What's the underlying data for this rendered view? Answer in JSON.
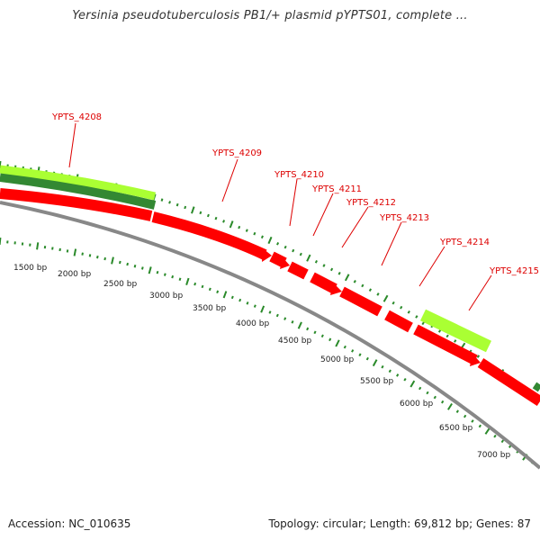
{
  "title": "Yersinia pseudotuberculosis PB1/+ plasmid pYPTS01, complete ...",
  "footer": {
    "accession": "Accession: NC_010635",
    "summary": "Topology: circular; Length: 69,812 bp; Genes: 87"
  },
  "colors": {
    "label_red": "#dd0000",
    "cds_red": "#ff0000",
    "cds_light_green": "#aaff33",
    "cds_dark_green": "#338833",
    "tick_green": "#2a8a2a",
    "backbone_gray": "#888888"
  },
  "genes": [
    {
      "name": "YPTS_4208"
    },
    {
      "name": "YPTS_4209"
    },
    {
      "name": "YPTS_4210"
    },
    {
      "name": "YPTS_4211"
    },
    {
      "name": "YPTS_4212"
    },
    {
      "name": "YPTS_4213"
    },
    {
      "name": "YPTS_4214"
    },
    {
      "name": "YPTS_4215"
    }
  ],
  "bp_labels": [
    "1500 bp",
    "2000 bp",
    "2500 bp",
    "3000 bp",
    "3500 bp",
    "4000 bp",
    "4500 bp",
    "5000 bp",
    "5500 bp",
    "6000 bp",
    "6500 bp",
    "7000 bp"
  ]
}
